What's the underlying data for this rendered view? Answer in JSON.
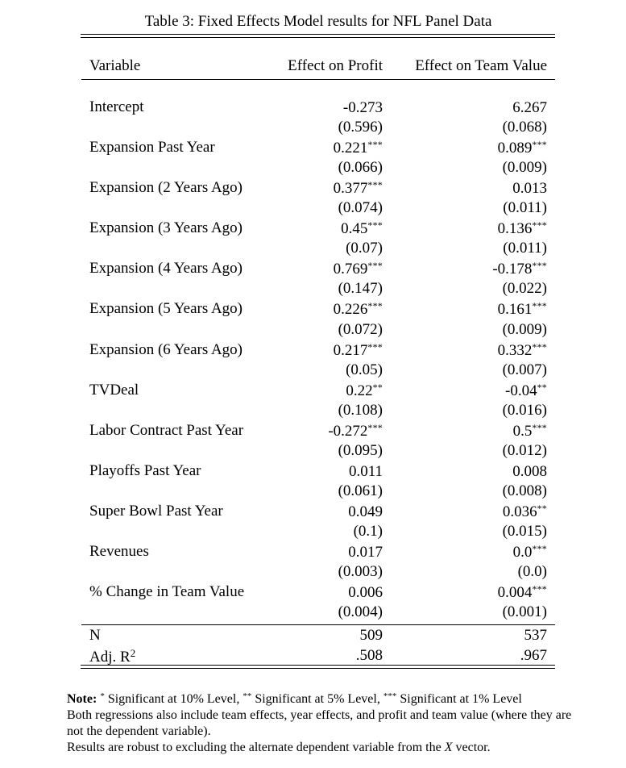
{
  "caption": "Table 3: Fixed Effects Model results for NFL Panel Data",
  "columns": [
    "Variable",
    "Effect on Profit",
    "Effect on Team Value"
  ],
  "rows": [
    {
      "variable": "Intercept",
      "profit": "-0.273",
      "profit_stars": "",
      "profit_se": "(0.596)",
      "value": "6.267",
      "value_stars": "",
      "value_se": "(0.068)"
    },
    {
      "variable": "Expansion Past Year",
      "profit": "0.221",
      "profit_stars": "***",
      "profit_se": "(0.066)",
      "value": "0.089",
      "value_stars": "***",
      "value_se": "(0.009)"
    },
    {
      "variable": "Expansion (2 Years Ago)",
      "profit": "0.377",
      "profit_stars": "***",
      "profit_se": "(0.074)",
      "value": "0.013",
      "value_stars": "",
      "value_se": "(0.011)"
    },
    {
      "variable": "Expansion (3 Years Ago)",
      "profit": "0.45",
      "profit_stars": "***",
      "profit_se": "(0.07)",
      "value": "0.136",
      "value_stars": "***",
      "value_se": "(0.011)"
    },
    {
      "variable": "Expansion (4 Years Ago)",
      "profit": "0.769",
      "profit_stars": "***",
      "profit_se": "(0.147)",
      "value": "-0.178",
      "value_stars": "***",
      "value_se": "(0.022)"
    },
    {
      "variable": "Expansion (5 Years Ago)",
      "profit": "0.226",
      "profit_stars": "***",
      "profit_se": "(0.072)",
      "value": "0.161",
      "value_stars": "***",
      "value_se": "(0.009)"
    },
    {
      "variable": "Expansion (6 Years Ago)",
      "profit": "0.217",
      "profit_stars": "***",
      "profit_se": "(0.05)",
      "value": "0.332",
      "value_stars": "***",
      "value_se": "(0.007)"
    },
    {
      "variable": "TVDeal",
      "profit": "0.22",
      "profit_stars": "**",
      "profit_se": "(0.108)",
      "value": "-0.04",
      "value_stars": "**",
      "value_se": "(0.016)"
    },
    {
      "variable": "Labor Contract Past Year",
      "profit": "-0.272",
      "profit_stars": "***",
      "profit_se": "(0.095)",
      "value": "0.5",
      "value_stars": "***",
      "value_se": "(0.012)"
    },
    {
      "variable": "Playoffs Past Year",
      "profit": "0.011",
      "profit_stars": "",
      "profit_se": "(0.061)",
      "value": "0.008",
      "value_stars": "",
      "value_se": "(0.008)"
    },
    {
      "variable": "Super Bowl Past Year",
      "profit": "0.049",
      "profit_stars": "",
      "profit_se": "(0.1)",
      "value": "0.036",
      "value_stars": "**",
      "value_se": "(0.015)"
    },
    {
      "variable": "Revenues",
      "profit": "0.017",
      "profit_stars": "",
      "profit_se": "(0.003)",
      "value": "0.0",
      "value_stars": "***",
      "value_se": "(0.0)"
    },
    {
      "variable": "% Change in Team Value",
      "profit": "0.006",
      "profit_stars": "",
      "profit_se": "(0.004)",
      "value": "0.004",
      "value_stars": "***",
      "value_se": "(0.001)"
    }
  ],
  "stats": {
    "n_label": "N",
    "n_profit": "509",
    "n_value": "537",
    "r2_label": "Adj. R",
    "r2_sup": "2",
    "r2_profit": ".508",
    "r2_value": ".967"
  },
  "note": {
    "label": "Note:",
    "star1": "*",
    "text1": " Significant at 10% Level, ",
    "star2": "**",
    "text2": " Significant at 5% Level, ",
    "star3": "***",
    "text3": " Significant at 1% Level",
    "line2": "Both regressions also include team effects, year effects, and profit and team value (where they are not the dependent variable).",
    "line3_pre": "Results are robust to excluding the alternate dependent variable from the ",
    "line3_var": "X",
    "line3_post": " vector."
  }
}
